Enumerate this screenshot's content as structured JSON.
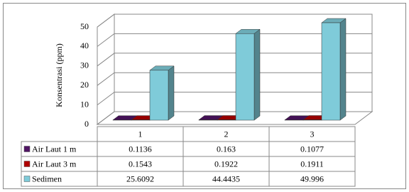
{
  "chart_data": {
    "type": "bar3d",
    "y_label": "Konsentrasi (ppm)",
    "categories": [
      "1",
      "2",
      "3"
    ],
    "series": [
      {
        "name": "Air Laut 1 m",
        "color": "#4f1464",
        "values": [
          0.1136,
          0.163,
          0.1077
        ]
      },
      {
        "name": "Air Laut 3 m",
        "color": "#b00000",
        "values": [
          0.1543,
          0.1922,
          0.1911
        ]
      },
      {
        "name": "Sedimen",
        "color": "#7fcbd9",
        "values": [
          25.6092,
          44.4435,
          49.996
        ]
      }
    ],
    "ylim": [
      0,
      50
    ],
    "yticks": [
      0,
      10,
      20,
      30,
      40,
      50
    ],
    "grid": true
  }
}
